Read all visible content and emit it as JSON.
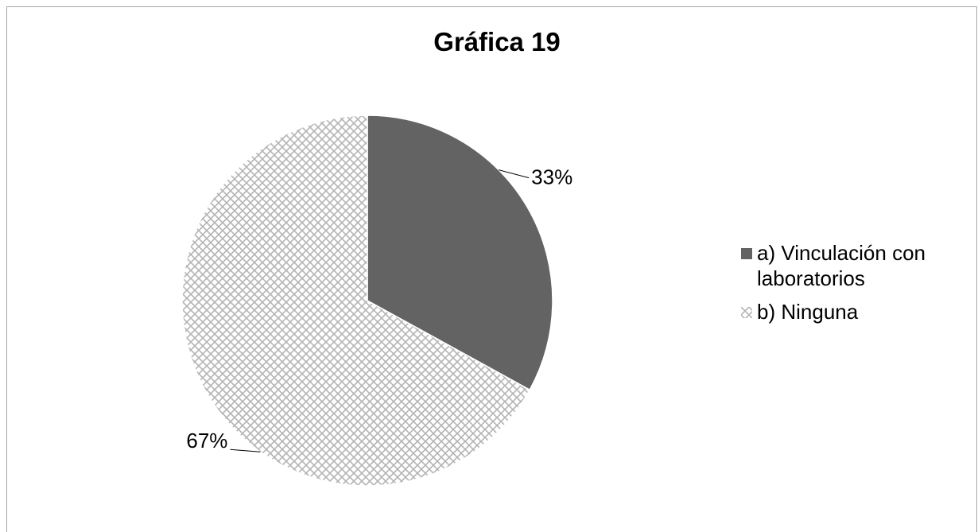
{
  "chart_data": {
    "type": "pie",
    "title": "Gráfica 19",
    "categories": [
      "a) Vinculación con laboratorios",
      "b) Ninguna"
    ],
    "values": [
      33,
      67
    ],
    "labels": [
      "33%",
      "67%"
    ],
    "colors": [
      "#636363",
      "#c8c8c8"
    ],
    "patterns": [
      "solid",
      "crosshatch"
    ],
    "legend_position": "right"
  }
}
